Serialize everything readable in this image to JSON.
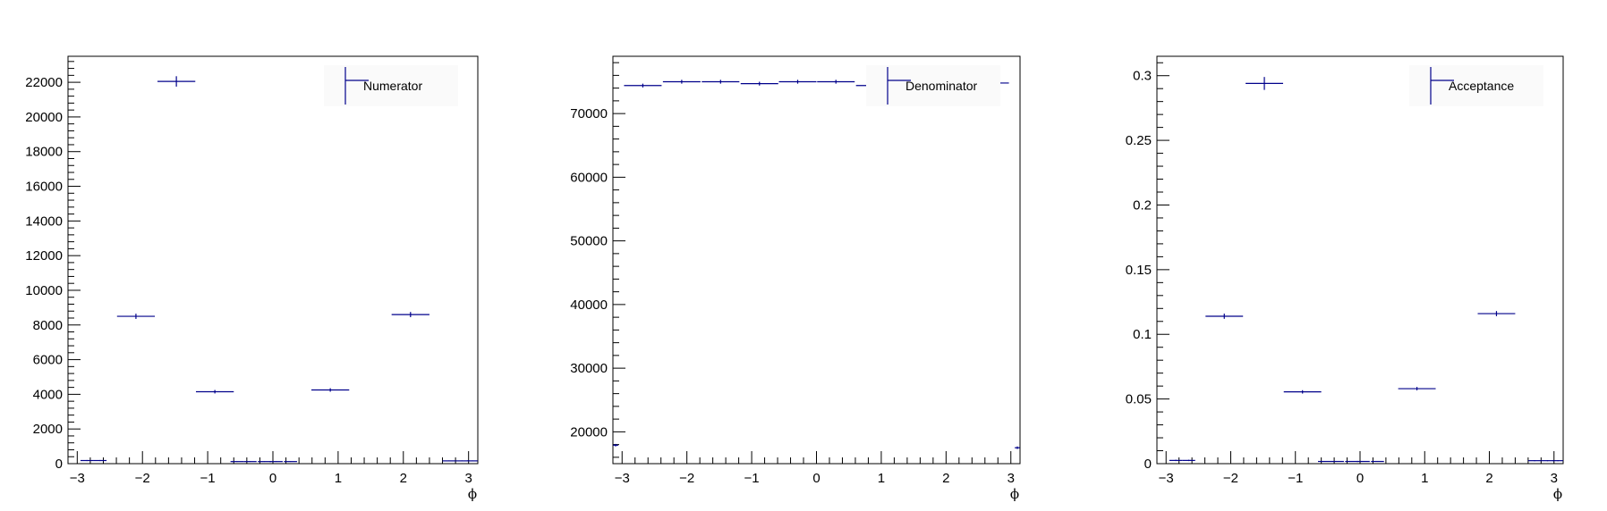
{
  "chart_data": [
    {
      "type": "scatter",
      "name": "numerator-panel",
      "legend": "Numerator",
      "legend_position": "top-right",
      "xlabel": "ϕ",
      "ylabel": "",
      "xlim": [
        -3.14159,
        3.14159
      ],
      "ylim": [
        0,
        23500
      ],
      "xticks": [
        -3,
        -2,
        -1,
        0,
        1,
        2,
        3
      ],
      "xtick_labels": [
        "−3",
        "−2",
        "−1",
        "0",
        "1",
        "2",
        "3"
      ],
      "yticks": [
        0,
        2000,
        4000,
        6000,
        8000,
        10000,
        12000,
        14000,
        16000,
        18000,
        20000,
        22000
      ],
      "ytick_labels": [
        "0",
        "2000",
        "4000",
        "6000",
        "8000",
        "10000",
        "12000",
        "14000",
        "16000",
        "18000",
        "20000",
        "22000"
      ],
      "bin_edges": [
        -3.14159,
        -2.55,
        -1.96,
        -1.37,
        -0.78,
        -0.19,
        0.4,
        0.99,
        1.58,
        2.17,
        2.76,
        3.14159
      ],
      "x": [
        -2.85,
        -2.1,
        -1.47,
        -0.9,
        -0.3,
        0.2,
        0.9,
        1.5,
        2.1,
        2.75,
        3.1
      ],
      "series": [
        {
          "x": [
            -2.85,
            -2.65,
            -2.1,
            -1.48,
            -0.89,
            -0.55,
            -0.35,
            -0.13,
            0.05,
            0.27,
            0.88,
            2.11,
            2.7,
            2.9,
            3.06
          ],
          "y": [
            180,
            180,
            8500,
            22050,
            4150,
            120,
            120,
            120,
            120,
            120,
            4250,
            8600,
            160,
            160,
            160
          ],
          "xerr": [
            0.1,
            0.1,
            0.29,
            0.29,
            0.29,
            0.1,
            0.1,
            0.1,
            0.1,
            0.1,
            0.29,
            0.29,
            0.1,
            0.1,
            0.08
          ],
          "yerr": [
            30,
            30,
            150,
            300,
            100,
            20,
            20,
            20,
            20,
            20,
            100,
            150,
            25,
            25,
            25
          ]
        }
      ]
    },
    {
      "type": "scatter",
      "name": "denominator-panel",
      "legend": "Denominator",
      "legend_position": "top-right",
      "xlabel": "ϕ",
      "ylabel": "",
      "xlim": [
        -3.14159,
        3.14159
      ],
      "ylim": [
        15000,
        79000
      ],
      "xticks": [
        -3,
        -2,
        -1,
        0,
        1,
        2,
        3
      ],
      "xtick_labels": [
        "−3",
        "−2",
        "−1",
        "0",
        "1",
        "2",
        "3"
      ],
      "yticks": [
        20000,
        30000,
        40000,
        50000,
        60000,
        70000
      ],
      "ytick_labels": [
        "20000",
        "30000",
        "40000",
        "50000",
        "60000",
        "70000"
      ],
      "series": [
        {
          "x": [
            -3.1,
            -2.68,
            -2.08,
            -1.48,
            -0.88,
            -0.29,
            0.3,
            0.9,
            1.5,
            2.1,
            2.68,
            3.1
          ],
          "y": [
            17900,
            74400,
            75000,
            75000,
            74700,
            75000,
            75000,
            74400,
            75200,
            74800,
            74800,
            17500
          ],
          "xerr": [
            0.04,
            0.29,
            0.29,
            0.29,
            0.29,
            0.29,
            0.29,
            0.29,
            0.29,
            0.29,
            0.29,
            0.04
          ],
          "yerr": [
            200,
            300,
            300,
            300,
            300,
            300,
            300,
            300,
            300,
            300,
            300,
            200
          ]
        }
      ]
    },
    {
      "type": "scatter",
      "name": "acceptance-panel",
      "legend": "Acceptance",
      "legend_position": "top-right",
      "xlabel": "ϕ",
      "ylabel": "",
      "xlim": [
        -3.14159,
        3.14159
      ],
      "ylim": [
        0,
        0.315
      ],
      "xticks": [
        -3,
        -2,
        -1,
        0,
        1,
        2,
        3
      ],
      "xtick_labels": [
        "−3",
        "−2",
        "−1",
        "0",
        "1",
        "2",
        "3"
      ],
      "yticks": [
        0,
        0.05,
        0.1,
        0.15,
        0.2,
        0.25,
        0.3
      ],
      "ytick_labels": [
        "0",
        "0.05",
        "0.1",
        "0.15",
        "0.2",
        "0.25",
        "0.3"
      ],
      "series": [
        {
          "x": [
            -2.85,
            -2.65,
            -2.1,
            -1.48,
            -0.89,
            -0.55,
            -0.35,
            -0.13,
            0.05,
            0.27,
            0.88,
            2.11,
            2.7,
            2.9,
            3.06
          ],
          "y": [
            0.0025,
            0.0025,
            0.114,
            0.294,
            0.0555,
            0.0017,
            0.0017,
            0.0017,
            0.0017,
            0.0017,
            0.058,
            0.116,
            0.0023,
            0.0023,
            0.0023
          ],
          "xerr": [
            0.1,
            0.1,
            0.29,
            0.29,
            0.29,
            0.1,
            0.1,
            0.1,
            0.1,
            0.1,
            0.29,
            0.29,
            0.1,
            0.1,
            0.08
          ],
          "yerr": [
            0.0005,
            0.0005,
            0.002,
            0.005,
            0.0013,
            0.0003,
            0.0003,
            0.0003,
            0.0003,
            0.0003,
            0.0013,
            0.002,
            0.0004,
            0.0004,
            0.0004
          ]
        }
      ]
    }
  ],
  "colors": {
    "marker": "#00008b",
    "axis": "#000000",
    "legend_bg": "#fafafa"
  }
}
